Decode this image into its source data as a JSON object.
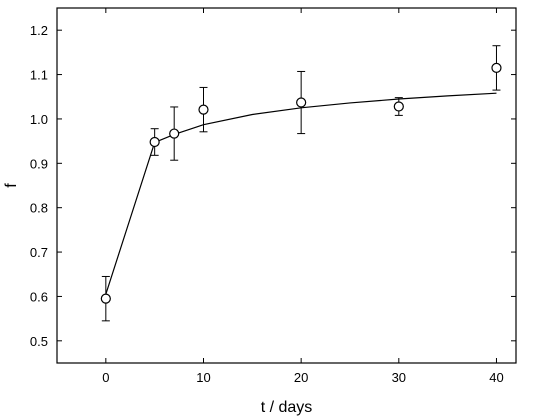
{
  "chart_data": {
    "type": "scatter",
    "xlabel": "t / days",
    "ylabel": "f",
    "xlim": [
      -5,
      42
    ],
    "ylim": [
      0.45,
      1.25
    ],
    "x_ticks": [
      0,
      10,
      20,
      30,
      40
    ],
    "y_ticks": [
      0.5,
      0.6,
      0.7,
      0.8,
      0.9,
      1.0,
      1.1,
      1.2
    ],
    "x_tick_labels": [
      "0",
      "10",
      "20",
      "30",
      "40"
    ],
    "y_tick_labels": [
      "0.5",
      "0.6",
      "0.7",
      "0.8",
      "0.9",
      "1.0",
      "1.1",
      "1.2"
    ],
    "series": [
      {
        "x": [
          0,
          5,
          7,
          10,
          20,
          30,
          40
        ],
        "y": [
          0.595,
          0.948,
          0.967,
          1.021,
          1.037,
          1.028,
          1.115
        ],
        "yerr": [
          0.05,
          0.03,
          0.06,
          0.05,
          0.07,
          0.02,
          0.05
        ]
      }
    ],
    "fit_curve": {
      "x": [
        0,
        5,
        7,
        10,
        15,
        20,
        25,
        30,
        35,
        40
      ],
      "y": [
        0.605,
        0.947,
        0.965,
        0.987,
        1.01,
        1.025,
        1.036,
        1.045,
        1.052,
        1.058
      ]
    },
    "grid": false,
    "legend": "none",
    "marker": "open-circle",
    "colors": {
      "axis": "#000000",
      "series": "#000000",
      "background": "#ffffff"
    }
  }
}
